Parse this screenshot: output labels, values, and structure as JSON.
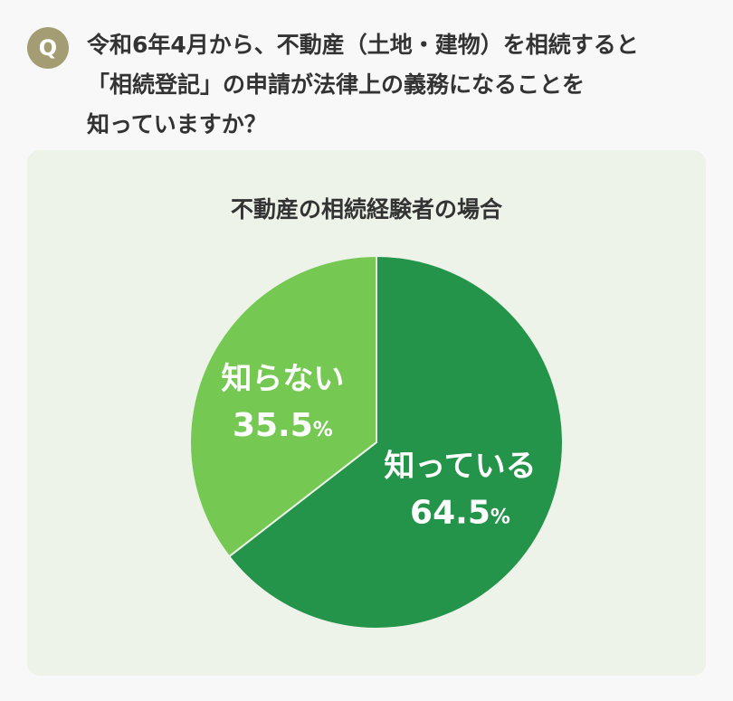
{
  "question": {
    "badge": "Q",
    "lines": [
      "令和6年4月から、不動産（土地・建物）を相続すると",
      "「相続登記」の申請が法律上の義務になることを",
      "知っていますか？"
    ]
  },
  "chart_data": {
    "type": "pie",
    "title": "不動産の相続経験者の場合",
    "unit": "%",
    "slices": [
      {
        "label": "知っている",
        "value": 64.5,
        "value_text": "64.5",
        "color": "#24944a"
      },
      {
        "label": "知らない",
        "value": 35.5,
        "value_text": "35.5",
        "color": "#75c953"
      }
    ]
  }
}
